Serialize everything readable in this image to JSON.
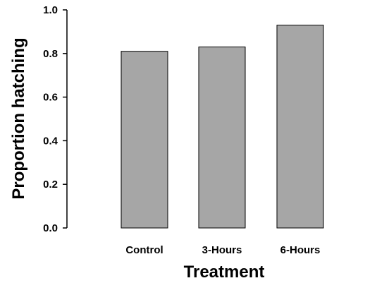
{
  "chart_data": {
    "type": "bar",
    "title": "",
    "xlabel": "Treatment",
    "ylabel": "Proportion hatching",
    "categories": [
      "Control",
      "3-Hours",
      "6-Hours"
    ],
    "values": [
      0.81,
      0.83,
      0.93
    ],
    "ylim": [
      0,
      1.0
    ],
    "yticks": [
      "0.0",
      "0.2",
      "0.4",
      "0.6",
      "0.8",
      "1.0"
    ],
    "grid": false,
    "bar_color": "#a6a6a6",
    "bar_edge_color": "#000000"
  }
}
